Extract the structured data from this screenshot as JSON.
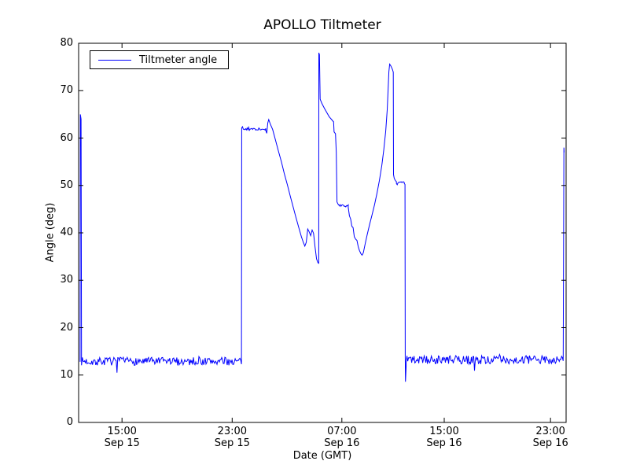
{
  "chart_data": {
    "type": "line",
    "title": "APOLLO Tiltmeter",
    "xlabel": "Date (GMT)",
    "ylabel": "Angle (deg)",
    "ylim": [
      0,
      80
    ],
    "grid": false,
    "legend": {
      "label": "Tiltmeter angle",
      "position": "upper-left"
    },
    "series_color": "#0000ff",
    "axis_color": "#000000",
    "y_ticks": [
      0,
      10,
      20,
      30,
      40,
      50,
      60,
      70,
      80
    ],
    "x_ticks": [
      {
        "frac": 0.089,
        "time": "15:00",
        "date": "Sep 15"
      },
      {
        "frac": 0.315,
        "time": "23:00",
        "date": "Sep 15"
      },
      {
        "frac": 0.54,
        "time": "07:00",
        "date": "Sep 16"
      },
      {
        "frac": 0.75,
        "time": "15:00",
        "date": "Sep 16"
      },
      {
        "frac": 0.968,
        "time": "23:00",
        "date": "Sep 16"
      }
    ],
    "series": [
      {
        "name": "Tiltmeter angle",
        "segments": [
          {
            "kind": "path",
            "points": [
              [
                0.003,
                12.8
              ],
              [
                0.0035,
                65.0
              ],
              [
                0.005,
                64.0
              ],
              [
                0.0055,
                40.0
              ],
              [
                0.006,
                13.2
              ]
            ]
          },
          {
            "kind": "noise",
            "x0": 0.006,
            "x1": 0.334,
            "mean": 12.9,
            "amp": 0.85
          },
          {
            "kind": "path",
            "points": [
              [
                0.334,
                13.0
              ],
              [
                0.3345,
                61.8
              ]
            ]
          },
          {
            "kind": "noise",
            "x0": 0.3345,
            "x1": 0.384,
            "mean": 61.9,
            "amp": 0.25
          },
          {
            "kind": "path",
            "points": [
              [
                0.384,
                61.6
              ],
              [
                0.386,
                61.0
              ],
              [
                0.388,
                63.2
              ],
              [
                0.39,
                63.9
              ],
              [
                0.393,
                63.0
              ],
              [
                0.398,
                61.8
              ],
              [
                0.404,
                59.5
              ],
              [
                0.41,
                57.2
              ],
              [
                0.416,
                55.0
              ],
              [
                0.422,
                52.5
              ],
              [
                0.428,
                50.2
              ],
              [
                0.434,
                47.8
              ],
              [
                0.44,
                45.5
              ],
              [
                0.446,
                43.2
              ],
              [
                0.452,
                41.0
              ],
              [
                0.457,
                39.2
              ],
              [
                0.461,
                38.0
              ],
              [
                0.464,
                37.2
              ],
              [
                0.467,
                38.0
              ],
              [
                0.47,
                40.8
              ],
              [
                0.473,
                40.2
              ],
              [
                0.476,
                39.4
              ],
              [
                0.479,
                40.6
              ],
              [
                0.482,
                39.9
              ],
              [
                0.485,
                37.0
              ],
              [
                0.488,
                34.5
              ],
              [
                0.491,
                33.7
              ],
              [
                0.4925,
                33.6
              ],
              [
                0.4928,
                78.0
              ],
              [
                0.494,
                77.6
              ],
              [
                0.4955,
                68.2
              ],
              [
                0.499,
                67.3
              ],
              [
                0.504,
                66.3
              ],
              [
                0.509,
                65.4
              ],
              [
                0.514,
                64.5
              ],
              [
                0.519,
                63.9
              ],
              [
                0.523,
                63.4
              ],
              [
                0.524,
                61.3
              ],
              [
                0.527,
                60.9
              ],
              [
                0.5285,
                57.0
              ],
              [
                0.53,
                46.5
              ],
              [
                0.533,
                45.9
              ],
              [
                0.535,
                45.8
              ]
            ]
          },
          {
            "kind": "noise",
            "x0": 0.535,
            "x1": 0.553,
            "mean": 45.7,
            "amp": 0.25
          },
          {
            "kind": "path",
            "points": [
              [
                0.553,
                45.4
              ],
              [
                0.5555,
                43.6
              ],
              [
                0.558,
                42.9
              ],
              [
                0.5605,
                41.4
              ],
              [
                0.563,
                41.1
              ],
              [
                0.5655,
                39.2
              ],
              [
                0.568,
                38.7
              ],
              [
                0.571,
                38.4
              ],
              [
                0.5735,
                37.1
              ],
              [
                0.576,
                36.3
              ],
              [
                0.579,
                35.6
              ],
              [
                0.5815,
                35.3
              ],
              [
                0.584,
                35.8
              ],
              [
                0.588,
                37.8
              ],
              [
                0.592,
                39.6
              ],
              [
                0.597,
                41.8
              ],
              [
                0.602,
                43.8
              ],
              [
                0.607,
                45.9
              ],
              [
                0.612,
                48.3
              ],
              [
                0.617,
                51.0
              ],
              [
                0.622,
                54.2
              ],
              [
                0.626,
                57.5
              ],
              [
                0.63,
                61.5
              ],
              [
                0.633,
                66.0
              ],
              [
                0.635,
                70.5
              ],
              [
                0.6365,
                74.0
              ],
              [
                0.638,
                75.6
              ],
              [
                0.64,
                75.3
              ],
              [
                0.642,
                74.9
              ],
              [
                0.644,
                74.4
              ],
              [
                0.6455,
                73.9
              ],
              [
                0.646,
                52.3
              ],
              [
                0.6475,
                51.5
              ],
              [
                0.65,
                51.0
              ],
              [
                0.652,
                50.8
              ]
            ]
          },
          {
            "kind": "noise",
            "x0": 0.652,
            "x1": 0.668,
            "mean": 50.6,
            "amp": 0.2
          },
          {
            "kind": "path",
            "points": [
              [
                0.668,
                50.4
              ],
              [
                0.6695,
                50.2
              ],
              [
                0.67,
                14.0
              ],
              [
                0.6705,
                8.6
              ],
              [
                0.672,
                12.0
              ]
            ]
          },
          {
            "kind": "noise",
            "x0": 0.672,
            "x1": 0.994,
            "mean": 13.2,
            "amp": 0.9
          },
          {
            "kind": "path",
            "points": [
              [
                0.994,
                13.0
              ],
              [
                0.9955,
                58.0
              ],
              [
                0.996,
                57.0
              ]
            ]
          }
        ]
      }
    ]
  }
}
